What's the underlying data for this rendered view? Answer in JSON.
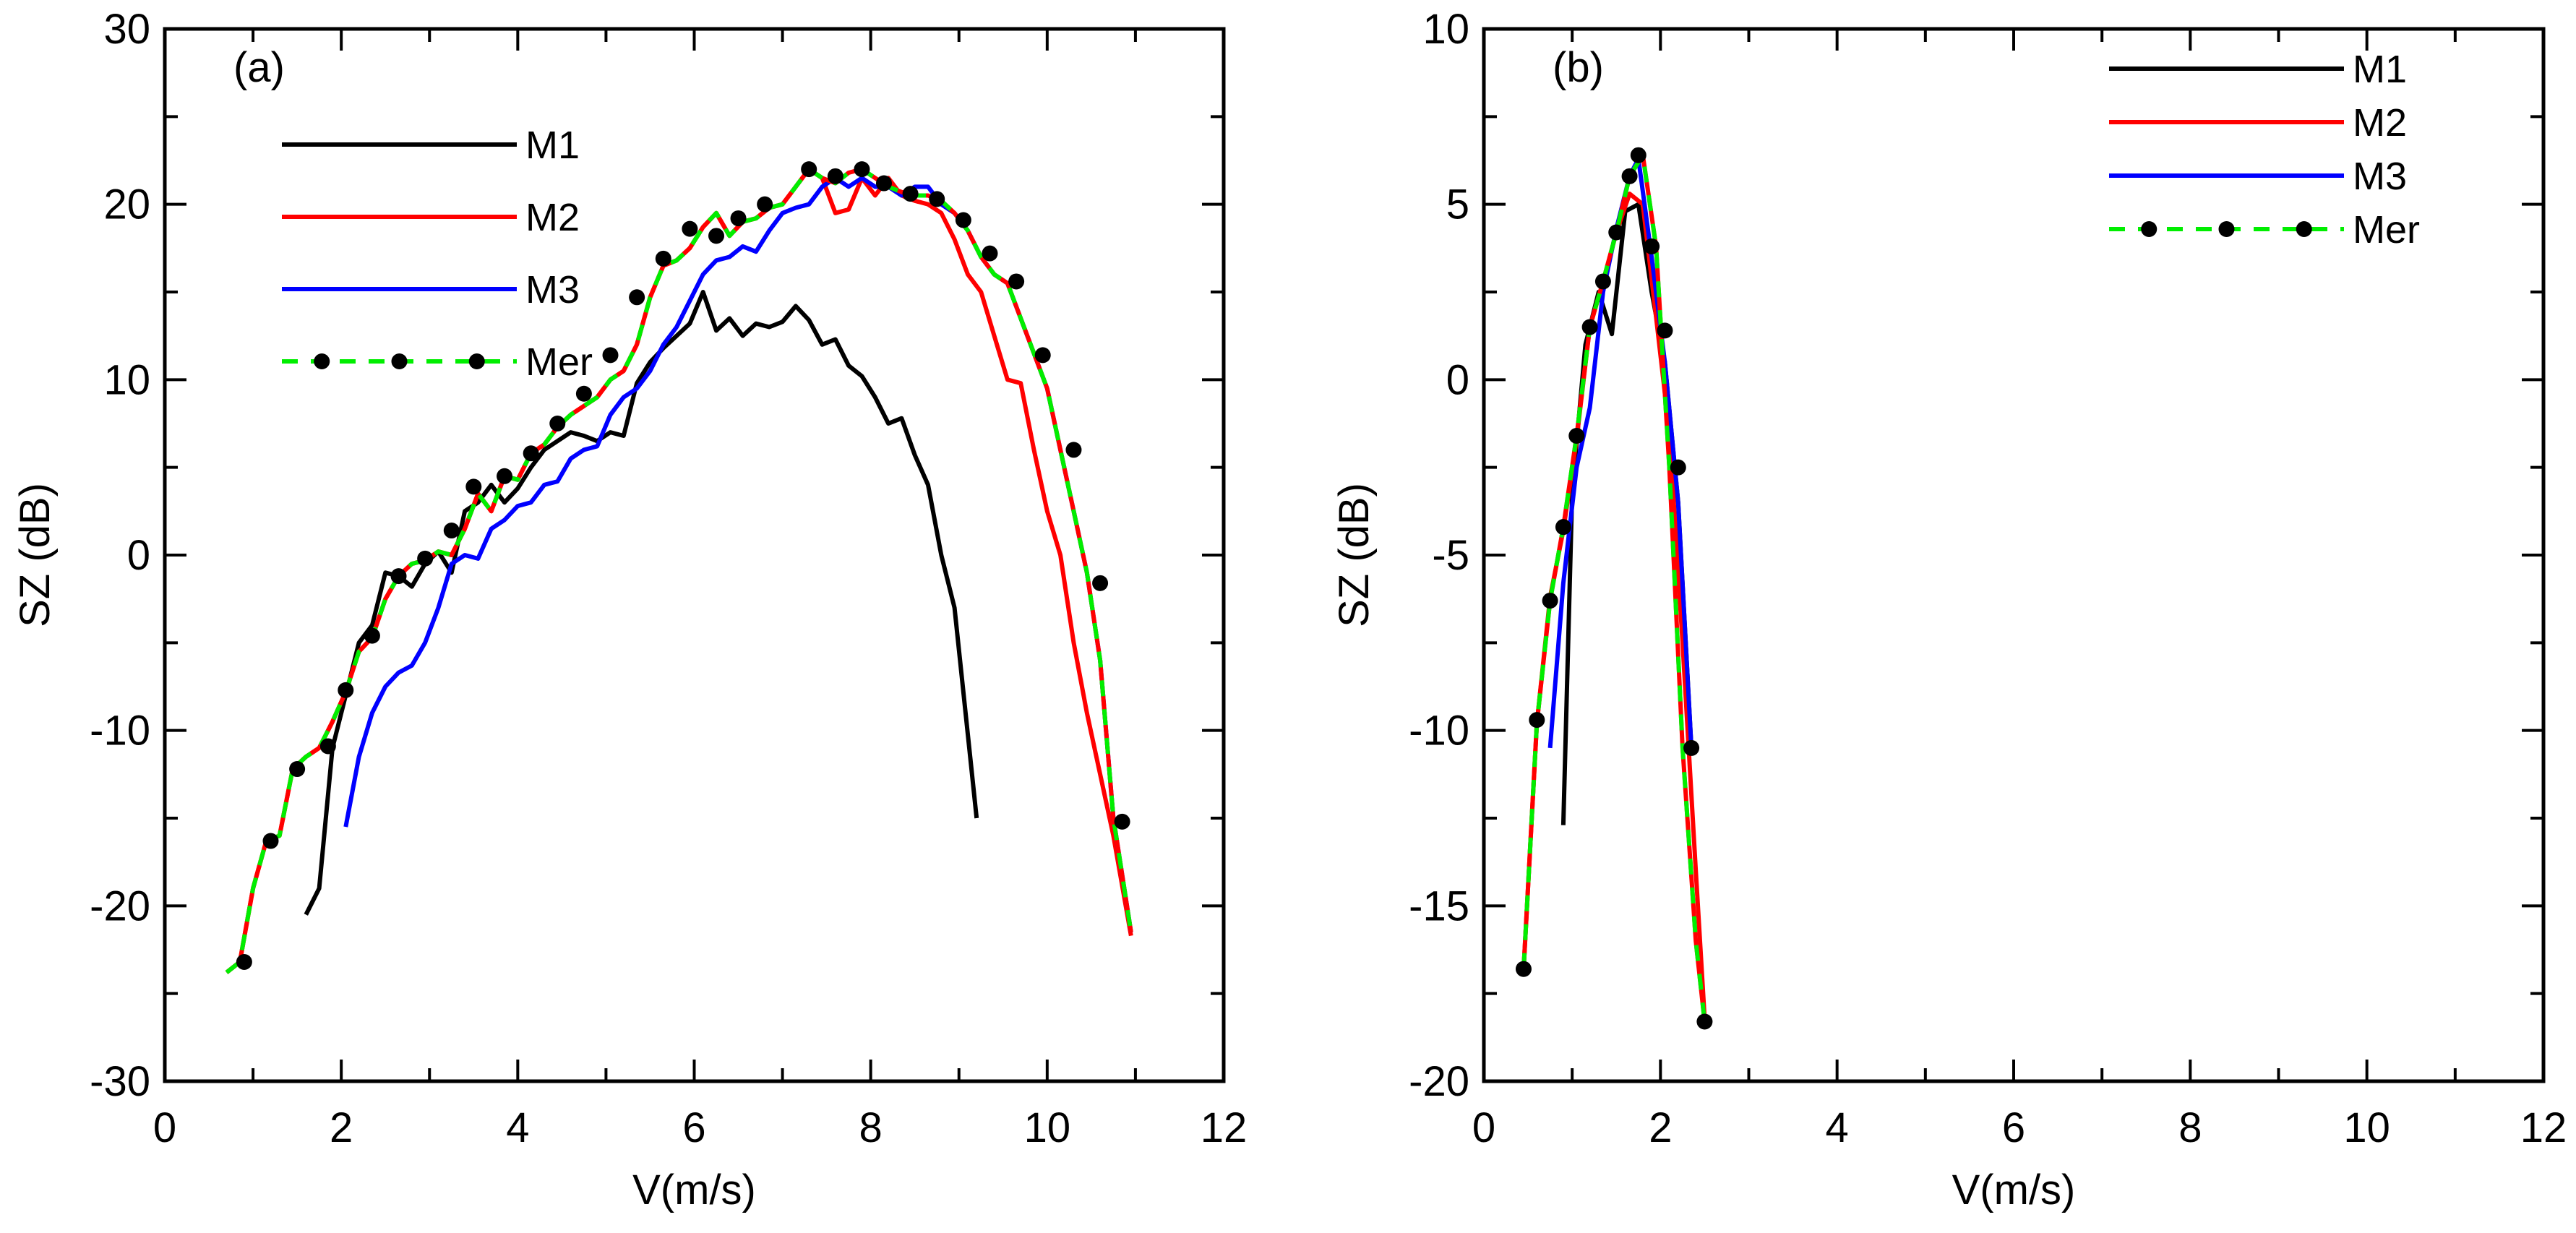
{
  "colors": {
    "M1": "#000000",
    "M2": "#ff0000",
    "M3": "#0000ff",
    "Mer": "#00ee00",
    "marker": "#000000"
  },
  "chart_data": [
    {
      "panel_label": "(a)",
      "type": "line",
      "xlabel": "V(m/s)",
      "ylabel": "SZ (dB)",
      "xlim": [
        0,
        12
      ],
      "ylim": [
        -30,
        30
      ],
      "xticks": [
        0,
        2,
        4,
        6,
        8,
        10,
        12
      ],
      "xtick_labels": [
        "0",
        "2",
        "4",
        "6",
        "8",
        "10",
        "12"
      ],
      "yticks": [
        -30,
        -20,
        -10,
        0,
        10,
        20,
        30
      ],
      "ytick_labels": [
        "-30",
        "-20",
        "-10",
        "0",
        "10",
        "20",
        "30"
      ],
      "legend_position": "top-left",
      "series": [
        {
          "name": "M1",
          "style": "solid",
          "x": [
            1.6,
            1.75,
            1.9,
            2.05,
            2.2,
            2.35,
            2.5,
            2.65,
            2.8,
            2.95,
            3.1,
            3.25,
            3.4,
            3.55,
            3.7,
            3.85,
            4.0,
            4.15,
            4.3,
            4.45,
            4.6,
            4.75,
            4.9,
            5.05,
            5.2,
            5.35,
            5.5,
            5.65,
            5.8,
            5.95,
            6.1,
            6.25,
            6.4,
            6.55,
            6.7,
            6.85,
            7.0,
            7.15,
            7.3,
            7.45,
            7.6,
            7.75,
            7.9,
            8.05,
            8.2,
            8.35,
            8.5,
            8.65,
            8.8,
            8.95,
            9.2
          ],
          "values": [
            -20.5,
            -19,
            -11,
            -8,
            -5,
            -4,
            -1,
            -1.2,
            -1.8,
            -0.5,
            0.2,
            -1,
            2.5,
            3,
            4,
            3,
            3.8,
            5,
            6,
            6.5,
            7,
            6.8,
            6.5,
            7,
            6.8,
            9.8,
            11,
            11.8,
            12.5,
            13.2,
            15,
            12.8,
            13.5,
            12.5,
            13.2,
            13,
            13.3,
            14.2,
            13.4,
            12,
            12.3,
            10.8,
            10.2,
            9,
            7.5,
            7.8,
            5.7,
            4,
            0,
            -3,
            -15
          ]
        },
        {
          "name": "M2",
          "style": "solid",
          "x": [
            0.7,
            0.85,
            1.0,
            1.15,
            1.3,
            1.45,
            1.6,
            1.75,
            1.9,
            2.05,
            2.2,
            2.35,
            2.5,
            2.65,
            2.8,
            2.95,
            3.1,
            3.25,
            3.4,
            3.55,
            3.7,
            3.85,
            4.0,
            4.15,
            4.3,
            4.45,
            4.6,
            4.75,
            4.9,
            5.05,
            5.2,
            5.35,
            5.5,
            5.65,
            5.8,
            5.95,
            6.1,
            6.25,
            6.4,
            6.55,
            6.7,
            6.85,
            7.0,
            7.15,
            7.3,
            7.45,
            7.6,
            7.75,
            7.9,
            8.05,
            8.2,
            8.35,
            8.5,
            8.65,
            8.8,
            8.95,
            9.1,
            9.25,
            9.4,
            9.55,
            9.7,
            9.85,
            10.0,
            10.15,
            10.3,
            10.45,
            10.6,
            10.75,
            10.95
          ],
          "values": [
            -23.8,
            -23.2,
            -19,
            -16.3,
            -16,
            -12.2,
            -11.5,
            -11,
            -9.5,
            -7.8,
            -5.5,
            -4.7,
            -2.5,
            -1.2,
            -0.5,
            -0.3,
            0.2,
            0,
            1.5,
            3.5,
            2.5,
            4.5,
            4.3,
            5.8,
            6.3,
            7.3,
            8,
            8.5,
            9,
            10,
            10.5,
            12,
            14.7,
            16.5,
            16.8,
            17.5,
            18.7,
            19.5,
            18.2,
            19,
            19.2,
            19.8,
            20,
            21,
            22,
            21.5,
            19.5,
            19.7,
            21.5,
            20.5,
            21.5,
            20.5,
            20.2,
            20,
            19.5,
            18,
            16,
            15,
            12.5,
            10,
            9.8,
            6,
            2.5,
            0,
            -5,
            -9,
            -12.5,
            -16,
            -21.7
          ]
        },
        {
          "name": "M3",
          "style": "solid",
          "x": [
            2.05,
            2.2,
            2.35,
            2.5,
            2.65,
            2.8,
            2.95,
            3.1,
            3.25,
            3.4,
            3.55,
            3.7,
            3.85,
            4.0,
            4.15,
            4.3,
            4.45,
            4.6,
            4.75,
            4.9,
            5.05,
            5.2,
            5.35,
            5.5,
            5.65,
            5.8,
            5.95,
            6.1,
            6.25,
            6.4,
            6.55,
            6.7,
            6.85,
            7.0,
            7.15,
            7.3,
            7.45,
            7.6,
            7.75,
            7.9,
            8.05,
            8.2,
            8.35,
            8.5,
            8.65,
            8.8,
            8.95,
            9.1,
            9.25,
            9.4,
            9.55,
            9.7,
            9.85,
            10.0,
            10.15,
            10.3,
            10.45,
            10.6,
            10.75,
            10.95
          ],
          "values": [
            -15.5,
            -11.5,
            -9,
            -7.5,
            -6.7,
            -6.3,
            -5,
            -3,
            -0.5,
            0,
            -0.2,
            1.5,
            2,
            2.8,
            3,
            4,
            4.2,
            5.5,
            6,
            6.2,
            8,
            9,
            9.5,
            10.5,
            12,
            13,
            14.5,
            16,
            16.8,
            17,
            17.6,
            17.3,
            18.5,
            19.5,
            19.8,
            20,
            21,
            21.5,
            21,
            21.5,
            21,
            21,
            20.5,
            21,
            21,
            20,
            19.5,
            18.5,
            17,
            16,
            15.5,
            13.5,
            11.5,
            9.5,
            6,
            2.5,
            -1,
            -6,
            -15,
            -21.5
          ]
        },
        {
          "name": "Mer",
          "style": "dashed-markers",
          "x": [
            0.7,
            0.85,
            1.0,
            1.15,
            1.3,
            1.45,
            1.6,
            1.75,
            1.9,
            2.05,
            2.2,
            2.35,
            2.5,
            2.65,
            2.8,
            2.95,
            3.1,
            3.25,
            3.4,
            3.55,
            3.7,
            3.85,
            4.0,
            4.15,
            4.3,
            4.45,
            4.6,
            4.75,
            4.9,
            5.05,
            5.2,
            5.35,
            5.5,
            5.65,
            5.8,
            5.95,
            6.1,
            6.25,
            6.4,
            6.55,
            6.7,
            6.85,
            7.0,
            7.15,
            7.3,
            7.45,
            7.6,
            7.75,
            7.9,
            8.05,
            8.2,
            8.35,
            8.5,
            8.65,
            8.8,
            8.95,
            9.1,
            9.25,
            9.4,
            9.55,
            9.7,
            9.85,
            10.0,
            10.15,
            10.3,
            10.45,
            10.6,
            10.75,
            10.95
          ],
          "values": [
            -23.8,
            -23.2,
            -19,
            -16.3,
            -16,
            -12.2,
            -11.5,
            -11,
            -9.5,
            -7.8,
            -5.5,
            -4.7,
            -2.5,
            -1.2,
            -0.5,
            -0.3,
            0.2,
            0,
            1.5,
            3.5,
            2.5,
            4.5,
            4.3,
            5.8,
            6.3,
            7.3,
            8,
            8.5,
            9,
            10,
            10.5,
            12,
            14.7,
            16.5,
            16.8,
            17.5,
            18.7,
            19.5,
            18.2,
            19,
            19.2,
            19.8,
            20,
            21,
            22,
            21.5,
            21.2,
            21.8,
            22,
            21.5,
            21,
            20.7,
            20.5,
            20.5,
            20.2,
            19.5,
            18.5,
            17,
            16,
            15.5,
            13.5,
            11.5,
            9.5,
            6,
            2.5,
            -1,
            -6,
            -15,
            -21.5
          ],
          "marker_x": [
            0.9,
            1.2,
            1.5,
            1.85,
            2.05,
            2.35,
            2.65,
            2.95,
            3.25,
            3.5,
            3.85,
            4.15,
            4.45,
            4.75,
            5.05,
            5.35,
            5.65,
            5.95,
            6.25,
            6.5,
            6.8,
            7.3,
            7.6,
            7.9,
            8.15,
            8.45,
            8.75,
            9.05,
            9.35,
            9.65,
            9.95,
            10.3,
            10.6,
            10.85
          ],
          "marker_values": [
            -23.2,
            -16.3,
            -12.2,
            -10.9,
            -7.7,
            -4.6,
            -1.2,
            -0.2,
            1.4,
            3.9,
            4.5,
            5.8,
            7.5,
            9.2,
            11.4,
            14.7,
            16.9,
            18.6,
            18.2,
            19.2,
            20,
            22,
            21.6,
            22,
            21.2,
            20.6,
            20.3,
            19.1,
            17.2,
            15.6,
            11.4,
            6,
            -1.6,
            -15.2
          ]
        }
      ]
    },
    {
      "panel_label": "(b)",
      "type": "line",
      "xlabel": "V(m/s)",
      "ylabel": "SZ (dB)",
      "xlim": [
        0,
        12
      ],
      "ylim": [
        -20,
        10
      ],
      "xticks": [
        0,
        2,
        4,
        6,
        8,
        10,
        12
      ],
      "xtick_labels": [
        "0",
        "2",
        "4",
        "6",
        "8",
        "10",
        "12"
      ],
      "yticks": [
        -20,
        -15,
        -10,
        -5,
        0,
        5,
        10
      ],
      "ytick_labels": [
        "-20",
        "-15",
        "-10",
        "-5",
        "0",
        "5",
        "10"
      ],
      "legend_position": "top-right",
      "series": [
        {
          "name": "M1",
          "style": "solid",
          "x": [
            0.9,
            1.0,
            1.15,
            1.3,
            1.45,
            1.6,
            1.75,
            1.9,
            2.05,
            2.2,
            2.35
          ],
          "values": [
            -12.7,
            -3.2,
            1,
            2.5,
            1.3,
            4.8,
            5,
            2.5,
            0.5,
            -3.5,
            -10.5
          ]
        },
        {
          "name": "M2",
          "style": "solid",
          "x": [
            0.45,
            0.6,
            0.75,
            0.9,
            1.05,
            1.2,
            1.35,
            1.5,
            1.65,
            1.8,
            1.95,
            2.1,
            2.25,
            2.4,
            2.5
          ],
          "values": [
            -16.8,
            -9.8,
            -6.2,
            -4.3,
            -1.7,
            1.5,
            2.8,
            4.2,
            5.3,
            5,
            1.8,
            -1.5,
            -7.5,
            -14,
            -18.2
          ]
        },
        {
          "name": "M3",
          "style": "solid",
          "x": [
            0.75,
            0.9,
            1.05,
            1.2,
            1.35,
            1.5,
            1.65,
            1.75,
            1.9,
            2.05,
            2.2,
            2.35
          ],
          "values": [
            -10.5,
            -5.8,
            -2.5,
            -0.8,
            2.5,
            4.3,
            5.8,
            6.3,
            3.5,
            0.5,
            -3.5,
            -10.5
          ]
        },
        {
          "name": "Mer",
          "style": "dashed-markers",
          "x": [
            0.45,
            0.6,
            0.75,
            0.9,
            1.05,
            1.2,
            1.35,
            1.5,
            1.65,
            1.8,
            1.95,
            2.1,
            2.25,
            2.4,
            2.5
          ],
          "values": [
            -16.8,
            -9.8,
            -6.3,
            -4.2,
            -1.6,
            1.5,
            2.8,
            4.2,
            5.8,
            6.4,
            3.8,
            -2.5,
            -10.5,
            -16,
            -18.3
          ],
          "marker_x": [
            0.45,
            0.6,
            0.75,
            0.9,
            1.05,
            1.2,
            1.35,
            1.5,
            1.65,
            1.75,
            1.9,
            2.05,
            2.2,
            2.35,
            2.5
          ],
          "marker_values": [
            -16.8,
            -9.7,
            -6.3,
            -4.2,
            -1.6,
            1.5,
            2.8,
            4.2,
            5.8,
            6.4,
            3.8,
            1.4,
            -2.5,
            -10.5,
            -18.3
          ]
        }
      ]
    }
  ]
}
